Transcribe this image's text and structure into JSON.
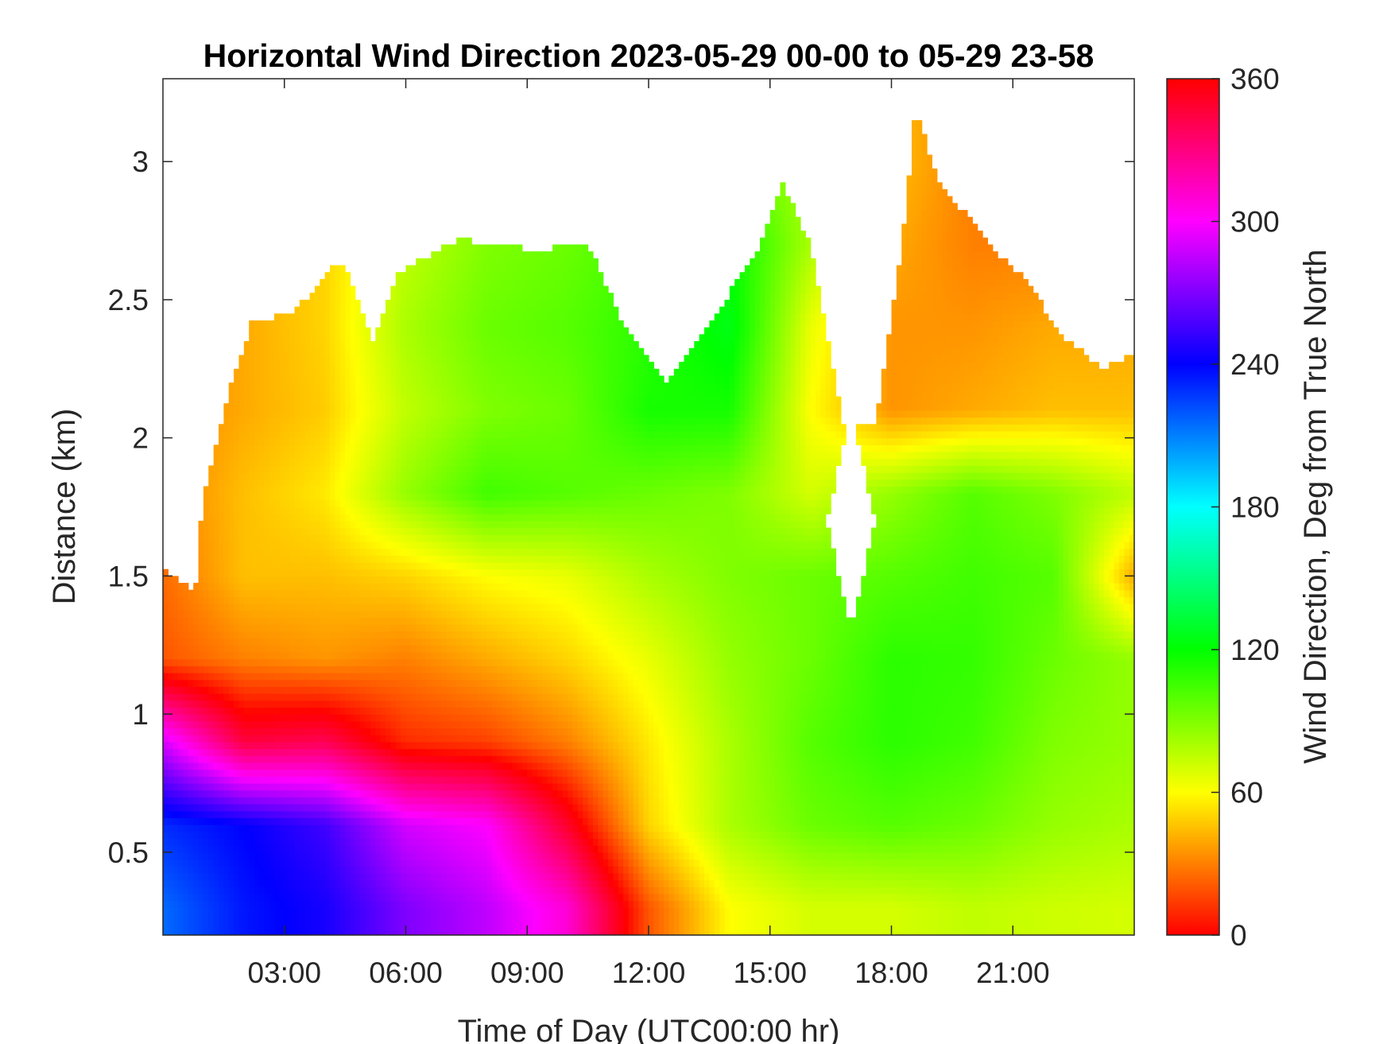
{
  "chart_data": {
    "type": "heatmap",
    "title": "Horizontal Wind Direction 2023-05-29 00-00 to 05-29 23-58",
    "xlabel": "Time of Day (UTC00:00 hr)",
    "ylabel": "Distance (km)",
    "colorbar_label": "Wind Direction, Deg from True North",
    "x_unit": "hour",
    "xlim": [
      0,
      24
    ],
    "ylim": [
      0.2,
      3.3
    ],
    "x_ticks": [
      3,
      6,
      9,
      12,
      15,
      18,
      21
    ],
    "x_tick_labels": [
      "03:00",
      "06:00",
      "09:00",
      "12:00",
      "15:00",
      "18:00",
      "21:00"
    ],
    "y_ticks": [
      0.5,
      1,
      1.5,
      2,
      2.5,
      3
    ],
    "y_tick_labels": [
      "0.5",
      "1",
      "1.5",
      "2",
      "2.5",
      "3"
    ],
    "clim": [
      0,
      360
    ],
    "colorbar_ticks": [
      0,
      60,
      120,
      180,
      240,
      300,
      360
    ],
    "colorbar_tick_labels": [
      "0",
      "60",
      "120",
      "180",
      "240",
      "300",
      "360"
    ],
    "colormap": "hsv",
    "grid": false,
    "top_of_data_km": [
      [
        0,
        1.52
      ],
      [
        0.8,
        1.45
      ],
      [
        1.0,
        1.8
      ],
      [
        1.7,
        2.2
      ],
      [
        2.2,
        2.42
      ],
      [
        3.2,
        2.45
      ],
      [
        4.4,
        2.65
      ],
      [
        5.2,
        2.35
      ],
      [
        5.8,
        2.6
      ],
      [
        7.3,
        2.72
      ],
      [
        9.2,
        2.68
      ],
      [
        10.5,
        2.7
      ],
      [
        11.4,
        2.4
      ],
      [
        12.5,
        2.2
      ],
      [
        13.4,
        2.4
      ],
      [
        14.6,
        2.65
      ],
      [
        15.3,
        2.92
      ],
      [
        16.0,
        2.7
      ],
      [
        16.8,
        2.05
      ],
      [
        17.6,
        2.05
      ],
      [
        18.3,
        2.75
      ],
      [
        18.6,
        3.2
      ],
      [
        19.1,
        2.95
      ],
      [
        20.4,
        2.7
      ],
      [
        21.5,
        2.55
      ],
      [
        22.0,
        2.4
      ],
      [
        23.2,
        2.25
      ],
      [
        24.0,
        2.3
      ]
    ],
    "data_gaps": [
      {
        "x": [
          16.4,
          17.6
        ],
        "y": [
          1.3,
          2.1
        ]
      }
    ],
    "direction_field_deg": {
      "x_hours": [
        0,
        2,
        4,
        6,
        8,
        10,
        12,
        14,
        16,
        18,
        20,
        22,
        24
      ],
      "y_km": [
        0.3,
        0.6,
        0.9,
        1.2,
        1.5,
        1.8,
        2.1,
        2.4,
        2.7,
        3.0
      ],
      "values": [
        [
          215,
          235,
          245,
          270,
          285,
          310,
          20,
          60,
          70,
          70,
          75,
          72,
          70
        ],
        [
          230,
          240,
          255,
          290,
          300,
          350,
          50,
          80,
          95,
          100,
          95,
          85,
          80
        ],
        [
          290,
          345,
          340,
          10,
          15,
          30,
          55,
          80,
          100,
          110,
          105,
          90,
          85
        ],
        [
          20,
          30,
          35,
          30,
          40,
          50,
          65,
          85,
          95,
          110,
          108,
          95,
          85
        ],
        [
          25,
          45,
          45,
          50,
          60,
          65,
          80,
          90,
          95,
          100,
          105,
          100,
          40
        ],
        [
          30,
          45,
          55,
          85,
          105,
          100,
          95,
          90,
          70,
          85,
          100,
          90,
          75
        ],
        [
          30,
          40,
          48,
          75,
          90,
          95,
          115,
          115,
          60,
          35,
          40,
          45,
          45
        ],
        [
          30,
          40,
          50,
          80,
          95,
          100,
          110,
          125,
          65,
          35,
          35,
          40,
          40
        ],
        [
          30,
          40,
          50,
          75,
          90,
          95,
          105,
          120,
          80,
          40,
          30,
          30,
          30
        ],
        [
          30,
          40,
          50,
          70,
          85,
          90,
          100,
          100,
          80,
          45,
          30,
          30,
          30
        ]
      ]
    }
  }
}
